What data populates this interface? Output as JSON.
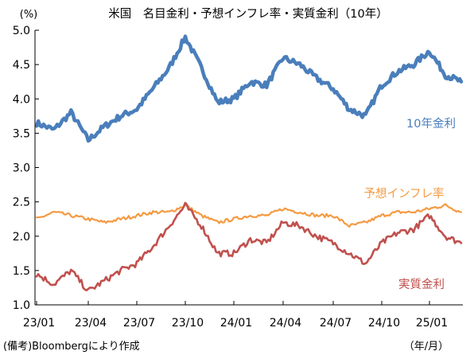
{
  "chart_data": {
    "type": "line",
    "title": "米国　名目金利・予想インフレ率・実質金利（10年）",
    "ylabel": "(%)",
    "xlabel": "（年/月）",
    "source": "(備考)Bloombergにより作成",
    "ylim": [
      1.0,
      5.0
    ],
    "yticks": [
      "1.0",
      "1.5",
      "2.0",
      "2.5",
      "3.0",
      "3.5",
      "4.0",
      "4.5",
      "5.0"
    ],
    "xticks": [
      "23/01",
      "23/04",
      "23/07",
      "23/10",
      "24/01",
      "24/04",
      "24/07",
      "24/10",
      "25/01"
    ],
    "grid": false,
    "legend": "inline labels",
    "series": [
      {
        "name": "10年金利",
        "color": "#4a7ebb",
        "points": [
          [
            "23/01",
            3.65
          ],
          [
            "23/02",
            3.55
          ],
          [
            "23/03",
            3.8
          ],
          [
            "23/04",
            3.4
          ],
          [
            "23/05",
            3.6
          ],
          [
            "23/06",
            3.75
          ],
          [
            "23/07",
            3.85
          ],
          [
            "23/08",
            4.15
          ],
          [
            "23/09",
            4.45
          ],
          [
            "23/10",
            4.9
          ],
          [
            "23/11",
            4.45
          ],
          [
            "23/12",
            3.95
          ],
          [
            "24/01",
            4.0
          ],
          [
            "24/02",
            4.25
          ],
          [
            "24/03",
            4.2
          ],
          [
            "24/04",
            4.6
          ],
          [
            "24/05",
            4.5
          ],
          [
            "24/06",
            4.3
          ],
          [
            "24/07",
            4.15
          ],
          [
            "24/08",
            3.85
          ],
          [
            "24/09",
            3.75
          ],
          [
            "24/10",
            4.2
          ],
          [
            "24/11",
            4.4
          ],
          [
            "24/12",
            4.5
          ],
          [
            "25/01",
            4.7
          ],
          [
            "25/02",
            4.35
          ],
          [
            "25/03",
            4.25
          ]
        ]
      },
      {
        "name": "予想インフレ率",
        "color": "#f59a42",
        "points": [
          [
            "23/01",
            2.25
          ],
          [
            "23/02",
            2.35
          ],
          [
            "23/03",
            2.3
          ],
          [
            "23/04",
            2.25
          ],
          [
            "23/05",
            2.2
          ],
          [
            "23/06",
            2.25
          ],
          [
            "23/07",
            2.3
          ],
          [
            "23/08",
            2.35
          ],
          [
            "23/09",
            2.35
          ],
          [
            "23/10",
            2.45
          ],
          [
            "23/11",
            2.3
          ],
          [
            "23/12",
            2.2
          ],
          [
            "24/01",
            2.25
          ],
          [
            "24/02",
            2.3
          ],
          [
            "24/03",
            2.3
          ],
          [
            "24/04",
            2.4
          ],
          [
            "24/05",
            2.35
          ],
          [
            "24/06",
            2.3
          ],
          [
            "24/07",
            2.3
          ],
          [
            "24/08",
            2.15
          ],
          [
            "24/09",
            2.2
          ],
          [
            "24/10",
            2.3
          ],
          [
            "24/11",
            2.35
          ],
          [
            "24/12",
            2.35
          ],
          [
            "25/01",
            2.4
          ],
          [
            "25/02",
            2.45
          ],
          [
            "25/03",
            2.35
          ]
        ]
      },
      {
        "name": "実質金利",
        "color": "#c0504d",
        "points": [
          [
            "23/01",
            1.45
          ],
          [
            "23/02",
            1.3
          ],
          [
            "23/03",
            1.5
          ],
          [
            "23/04",
            1.2
          ],
          [
            "23/05",
            1.35
          ],
          [
            "23/06",
            1.5
          ],
          [
            "23/07",
            1.6
          ],
          [
            "23/08",
            1.85
          ],
          [
            "23/09",
            2.15
          ],
          [
            "23/10",
            2.45
          ],
          [
            "23/11",
            2.15
          ],
          [
            "23/12",
            1.75
          ],
          [
            "24/01",
            1.75
          ],
          [
            "24/02",
            1.95
          ],
          [
            "24/03",
            1.9
          ],
          [
            "24/04",
            2.2
          ],
          [
            "24/05",
            2.15
          ],
          [
            "24/06",
            2.0
          ],
          [
            "24/07",
            1.9
          ],
          [
            "24/08",
            1.75
          ],
          [
            "24/09",
            1.6
          ],
          [
            "24/10",
            1.9
          ],
          [
            "24/11",
            2.05
          ],
          [
            "24/12",
            2.1
          ],
          [
            "25/01",
            2.3
          ],
          [
            "25/02",
            2.0
          ],
          [
            "25/03",
            1.9
          ]
        ]
      }
    ]
  }
}
